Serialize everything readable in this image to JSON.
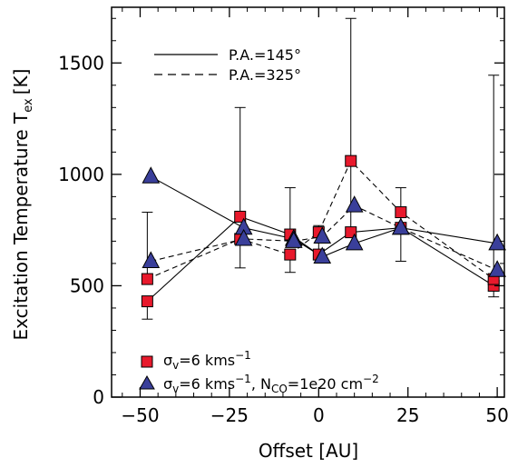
{
  "chart_data": {
    "type": "scatter",
    "xlabel": "Offset [AU]",
    "ylabel": "Excitation Temperature T",
    "ylabel_sub": "ex",
    "ylabel_unit": "[K]",
    "xlim": [
      -58,
      52
    ],
    "ylim": [
      0,
      1750
    ],
    "x_ticks": [
      -50,
      -25,
      0,
      25,
      50
    ],
    "x_tick_labels": [
      "−50",
      "−25",
      "0",
      "25",
      "50"
    ],
    "y_ticks": [
      0,
      500,
      1000,
      1500
    ],
    "y_tick_labels": [
      "0",
      "500",
      "1000",
      "1500"
    ],
    "grid": false,
    "legend_lines": [
      {
        "label": "P.A.=145°",
        "dash": "solid"
      },
      {
        "label": "P.A.=325°",
        "dash": "dashed"
      }
    ],
    "legend_markers": [
      {
        "label_parts": [
          "σ",
          "v",
          "=6  kms",
          "−1"
        ],
        "marker": "square",
        "color": "#e8192c"
      },
      {
        "label_parts": [
          "σ",
          "v",
          "=6  kms",
          "−1",
          ",  N",
          "CO",
          "=1e20  cm",
          "−2"
        ],
        "marker": "triangle",
        "color": "#3a3f9a"
      }
    ],
    "series": [
      {
        "marker": "square",
        "linestyle": "solid",
        "x": [
          -48,
          -22,
          -8,
          0,
          9,
          23,
          49
        ],
        "y": [
          430,
          810,
          730,
          640,
          740,
          760,
          500
        ],
        "yerr_low": [
          80,
          0,
          0,
          0,
          0,
          0,
          0
        ],
        "yerr_high": [
          0,
          490,
          210,
          130,
          960,
          180,
          945
        ]
      },
      {
        "marker": "square",
        "linestyle": "dashed",
        "x": [
          -48,
          -22,
          -8,
          0,
          9,
          23,
          49
        ],
        "y": [
          530,
          710,
          640,
          740,
          1060,
          830,
          530
        ],
        "yerr_low": [
          0,
          130,
          80,
          0,
          0,
          220,
          80
        ],
        "yerr_high": [
          300,
          0,
          0,
          0,
          0,
          0,
          0
        ]
      },
      {
        "marker": "triangle",
        "linestyle": "solid",
        "x": [
          -47,
          -21,
          -7,
          1,
          10,
          23,
          50
        ],
        "y": [
          990,
          760,
          710,
          630,
          690,
          760,
          690
        ],
        "yerr_low": [
          0,
          0,
          0,
          0,
          0,
          0,
          0
        ],
        "yerr_high": [
          0,
          0,
          0,
          0,
          0,
          0,
          0
        ]
      },
      {
        "marker": "triangle",
        "linestyle": "dashed",
        "x": [
          -47,
          -21,
          -7,
          1,
          10,
          23,
          50
        ],
        "y": [
          610,
          710,
          700,
          720,
          860,
          760,
          570
        ],
        "yerr_low": [
          0,
          0,
          0,
          0,
          0,
          0,
          0
        ],
        "yerr_high": [
          0,
          0,
          0,
          0,
          0,
          0,
          0
        ]
      }
    ]
  }
}
